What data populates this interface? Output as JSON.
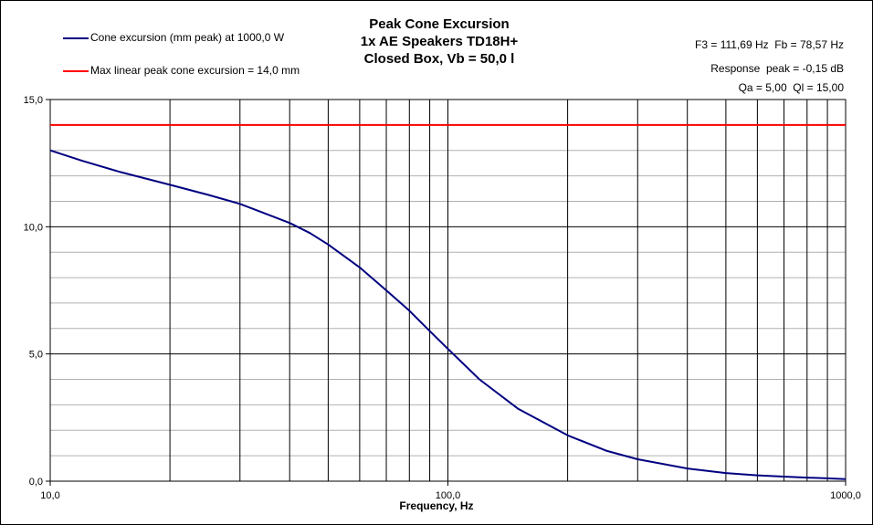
{
  "chart_data": {
    "type": "line",
    "title": [
      "Peak Cone Excursion",
      "1x AE Speakers TD18H+",
      "Closed Box, Vb = 50,0 l"
    ],
    "xlabel": "Frequency, Hz",
    "ylabel": "",
    "xscale": "log",
    "xlim": [
      10,
      1000
    ],
    "ylim": [
      0,
      15
    ],
    "xticks": [
      {
        "v": 10,
        "label": "10,0"
      },
      {
        "v": 100,
        "label": "100,0"
      },
      {
        "v": 1000,
        "label": "1000,0"
      }
    ],
    "yticks": [
      {
        "v": 0,
        "label": "0,0"
      },
      {
        "v": 5,
        "label": "5,0"
      },
      {
        "v": 10,
        "label": "10,0"
      },
      {
        "v": 15,
        "label": "15,0"
      }
    ],
    "series": [
      {
        "name": "Cone excursion (mm peak) at 1000,0 W",
        "color": "#000080",
        "x": [
          10,
          12,
          15,
          20,
          25,
          30,
          35,
          40,
          45,
          50,
          60,
          70,
          80,
          90,
          100,
          120,
          150,
          200,
          250,
          300,
          400,
          500,
          600,
          700,
          800,
          900,
          1000
        ],
        "y": [
          13.0,
          12.6,
          12.15,
          11.65,
          11.25,
          10.9,
          10.5,
          10.15,
          9.75,
          9.3,
          8.4,
          7.5,
          6.7,
          5.9,
          5.2,
          4.0,
          2.85,
          1.8,
          1.2,
          0.86,
          0.5,
          0.32,
          0.23,
          0.18,
          0.14,
          0.11,
          0.08
        ]
      },
      {
        "name": "Max linear peak cone excursion = 14,0 mm",
        "color": "#ff0000",
        "x": [
          10,
          1000
        ],
        "y": [
          14,
          14
        ]
      }
    ],
    "annotations": [
      "F3 = 111,69 Hz  Fb = 78,57 Hz",
      "Response  peak = -0,15 dB",
      "Qa = 5,00  Ql = 15,00"
    ],
    "legend": "top-left",
    "grid": true
  }
}
